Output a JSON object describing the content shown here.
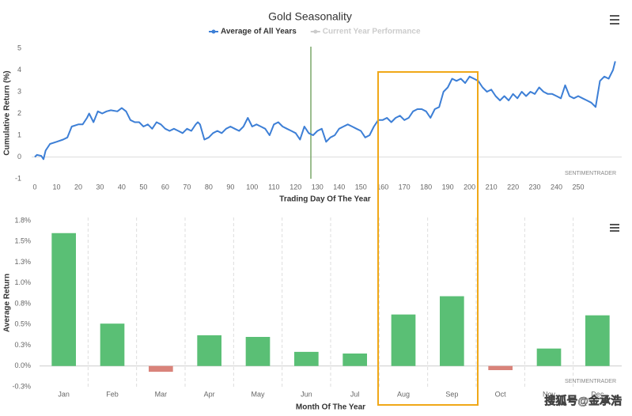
{
  "charts": [
    {
      "type": "line",
      "title": "Gold Seasonality",
      "x_label": "Trading Day Of The Year",
      "y_label": "Cumulative Return (%)",
      "credit": "SENTIMENTRADER",
      "x": [
        0,
        1,
        3,
        4,
        5,
        7,
        10,
        13,
        15,
        17,
        20,
        22,
        24,
        25,
        27,
        29,
        31,
        33,
        35,
        38,
        40,
        42,
        44,
        46,
        48,
        50,
        52,
        54,
        56,
        58,
        60,
        62,
        64,
        66,
        68,
        70,
        72,
        74,
        75,
        76,
        78,
        80,
        82,
        84,
        86,
        88,
        90,
        92,
        94,
        96,
        98,
        100,
        102,
        104,
        106,
        108,
        110,
        112,
        114,
        116,
        118,
        120,
        122,
        124,
        126,
        128,
        130,
        132,
        134,
        136,
        138,
        140,
        142,
        144,
        146,
        148,
        150,
        152,
        154,
        156,
        158,
        160,
        162,
        164,
        166,
        168,
        170,
        172,
        174,
        176,
        178,
        180,
        182,
        184,
        186,
        188,
        190,
        192,
        194,
        196,
        198,
        200,
        202,
        204,
        206,
        208,
        210,
        212,
        214,
        216,
        218,
        220,
        222,
        224,
        226,
        228,
        230,
        232,
        234,
        236,
        238,
        240,
        242,
        244,
        246,
        248,
        250,
        252,
        254,
        256,
        258,
        260,
        262,
        264,
        266,
        267
      ],
      "series": [
        {
          "name": "Average of All Years",
          "color": "#3d7fd6",
          "values": [
            0,
            0.1,
            0.05,
            -0.1,
            0.3,
            0.6,
            0.7,
            0.8,
            0.9,
            1.4,
            1.5,
            1.5,
            1.8,
            2.0,
            1.6,
            2.1,
            2.0,
            2.1,
            2.15,
            2.1,
            2.25,
            2.1,
            1.7,
            1.6,
            1.6,
            1.4,
            1.5,
            1.3,
            1.6,
            1.5,
            1.3,
            1.2,
            1.3,
            1.2,
            1.1,
            1.3,
            1.2,
            1.5,
            1.6,
            1.5,
            0.8,
            0.9,
            1.1,
            1.2,
            1.1,
            1.3,
            1.4,
            1.3,
            1.2,
            1.4,
            1.8,
            1.4,
            1.5,
            1.4,
            1.3,
            1.0,
            1.5,
            1.6,
            1.4,
            1.3,
            1.2,
            1.1,
            0.8,
            1.4,
            1.1,
            1.0,
            1.2,
            1.3,
            0.7,
            0.9,
            1.0,
            1.3,
            1.4,
            1.5,
            1.4,
            1.3,
            1.2,
            0.9,
            1.0,
            1.4,
            1.7,
            1.7,
            1.8,
            1.6,
            1.8,
            1.9,
            1.7,
            1.8,
            2.1,
            2.2,
            2.2,
            2.1,
            1.8,
            2.2,
            2.3,
            3.0,
            3.2,
            3.6,
            3.5,
            3.6,
            3.4,
            3.7,
            3.6,
            3.5,
            3.2,
            3.0,
            3.1,
            2.8,
            2.6,
            2.8,
            2.6,
            2.9,
            2.7,
            3.0,
            2.8,
            3.0,
            2.9,
            3.2,
            3.0,
            2.9,
            2.9,
            2.8,
            2.7,
            3.3,
            2.8,
            2.7,
            2.8,
            2.7,
            2.6,
            2.5,
            2.3,
            3.5,
            3.7,
            3.6,
            4.0,
            4.4
          ]
        },
        {
          "name": "Current Year Performance",
          "color": "#cccccc",
          "visible": false
        }
      ],
      "xlim": [
        0,
        270
      ],
      "xticks": [
        0,
        10,
        20,
        30,
        40,
        50,
        60,
        70,
        80,
        90,
        100,
        110,
        120,
        130,
        140,
        150,
        160,
        170,
        180,
        190,
        200,
        210,
        220,
        230,
        240,
        250
      ],
      "ylim": [
        -1,
        5
      ],
      "yticks": [
        -1,
        0,
        1,
        2,
        3,
        4,
        5
      ],
      "plot_lines": [
        {
          "value": 127,
          "color": "#7aa86a"
        }
      ]
    },
    {
      "type": "bar",
      "x_label": "Month Of The Year",
      "y_label": "Average Return",
      "credit": "SENTIMENTRADER",
      "categories": [
        "Jan",
        "Feb",
        "Mar",
        "Apr",
        "May",
        "Jun",
        "Jul",
        "Aug",
        "Sep",
        "Oct",
        "Nov",
        "Dec"
      ],
      "values": [
        1.6,
        0.51,
        -0.07,
        0.37,
        0.35,
        0.17,
        0.15,
        0.62,
        0.84,
        -0.05,
        0.21,
        0.61
      ],
      "color": "#5abf75",
      "negative_color": "#d9837a",
      "ylim": [
        -0.25,
        1.75
      ],
      "yticks": [
        {
          "value": -0.25,
          "label": "-0.3%"
        },
        {
          "value": 0,
          "label": "0.0%"
        },
        {
          "value": 0.25,
          "label": "0.3%"
        },
        {
          "value": 0.5,
          "label": "0.5%"
        },
        {
          "value": 0.75,
          "label": "0.8%"
        },
        {
          "value": 1,
          "label": "1.0%"
        },
        {
          "value": 1.25,
          "label": "1.3%"
        },
        {
          "value": 1.5,
          "label": "1.5%"
        },
        {
          "value": 1.75,
          "label": "1.8%"
        }
      ]
    }
  ],
  "watermark": "搜狐号@金承浩"
}
